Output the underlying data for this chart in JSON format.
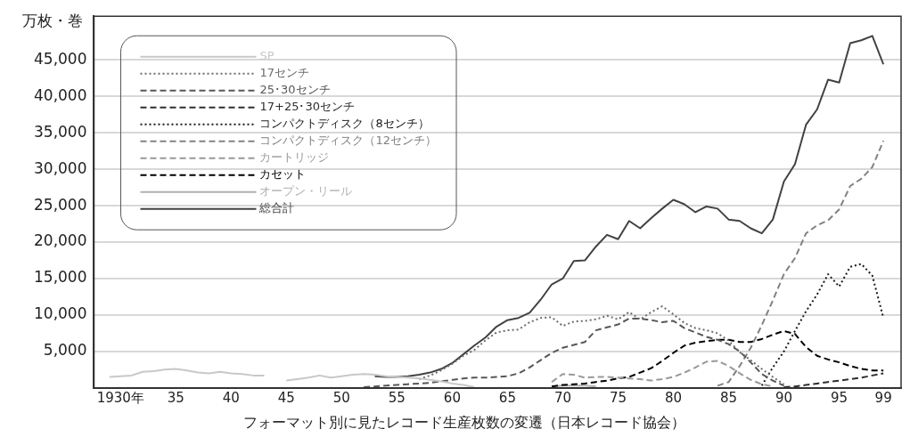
{
  "chart_data": {
    "type": "line",
    "title": "フォーマット別に見たレコード生産枚数の変遷（日本レコード協会）",
    "ylabel": "万枚・巻",
    "xlim": [
      1927.6,
      2000.6
    ],
    "xticks": [
      {
        "value": 1930,
        "label": "1930年"
      },
      {
        "value": 1935,
        "label": "35"
      },
      {
        "value": 1940,
        "label": "40"
      },
      {
        "value": 1945,
        "label": "45"
      },
      {
        "value": 1950,
        "label": "50"
      },
      {
        "value": 1955,
        "label": "55"
      },
      {
        "value": 1960,
        "label": "60"
      },
      {
        "value": 1965,
        "label": "65"
      },
      {
        "value": 1970,
        "label": "70"
      },
      {
        "value": 1975,
        "label": "75"
      },
      {
        "value": 1980,
        "label": "80"
      },
      {
        "value": 1985,
        "label": "85"
      },
      {
        "value": 1990,
        "label": "90"
      },
      {
        "value": 1995,
        "label": "95"
      },
      {
        "value": 1999,
        "label": "99"
      }
    ],
    "ylim": [
      0,
      51000
    ],
    "yticks": [
      {
        "value": 5000,
        "label": "5,000"
      },
      {
        "value": 10000,
        "label": "10,000"
      },
      {
        "value": 15000,
        "label": "15,000"
      },
      {
        "value": 20000,
        "label": "20,000"
      },
      {
        "value": 25000,
        "label": "25,000"
      },
      {
        "value": 30000,
        "label": "30,000"
      },
      {
        "value": 35000,
        "label": "35,000"
      },
      {
        "value": 40000,
        "label": "40,000"
      },
      {
        "value": 45000,
        "label": "45,000"
      }
    ],
    "grid": "y",
    "legend": "top left",
    "series": [
      {
        "name": "SP",
        "color": "#c8c8c8",
        "line_style": "solid",
        "x": [
          1929,
          1930,
          1931,
          1932,
          1933,
          1934,
          1935,
          1936,
          1937,
          1938,
          1939,
          1940,
          1941,
          1942,
          1943,
          1944,
          1945,
          1946,
          1947,
          1948,
          1949,
          1950,
          1951,
          1952,
          1953,
          1954,
          1955,
          1956,
          1957,
          1958,
          1959,
          1960,
          1961,
          1962
        ],
        "values": [
          1500,
          1600,
          1700,
          2200,
          2300,
          2500,
          2600,
          2400,
          2100,
          2000,
          2200,
          2000,
          1900,
          1700,
          1700,
          null,
          1000,
          1200,
          1400,
          1700,
          1400,
          1600,
          1800,
          1900,
          1800,
          1600,
          1500,
          1400,
          1300,
          1100,
          900,
          600,
          400,
          100
        ]
      },
      {
        "name": "17センチ",
        "color": "#6c6c6c",
        "line_style": "dotted",
        "x": [
          1957,
          1958,
          1959,
          1960,
          1961,
          1962,
          1963,
          1964,
          1965,
          1966,
          1967,
          1968,
          1969,
          1970,
          1971,
          1972,
          1973,
          1974,
          1975,
          1976,
          1977,
          1978,
          1979,
          1980,
          1981,
          1982,
          1983,
          1984,
          1985,
          1986,
          1987,
          1988,
          1989,
          1990
        ],
        "values": [
          1200,
          1700,
          2400,
          3300,
          4400,
          5200,
          6500,
          7600,
          7900,
          8000,
          9000,
          9600,
          9700,
          8500,
          9100,
          9200,
          9400,
          9900,
          9400,
          10400,
          9400,
          10400,
          11200,
          10100,
          8900,
          8200,
          7900,
          7500,
          6500,
          4900,
          3800,
          2600,
          1500,
          500
        ]
      },
      {
        "name": "25･30センチ",
        "color": "#575757",
        "line_style": "dashed",
        "x": [
          1952,
          1953,
          1954,
          1955,
          1956,
          1957,
          1958,
          1959,
          1960,
          1961,
          1962,
          1963,
          1964,
          1965,
          1966,
          1967,
          1968,
          1969,
          1970,
          1971,
          1972,
          1973,
          1974,
          1975,
          1976,
          1977,
          1978,
          1979,
          1980,
          1981,
          1982,
          1983,
          1984,
          1985,
          1986,
          1987,
          1988,
          1989,
          1990
        ],
        "values": [
          100,
          200,
          300,
          400,
          500,
          600,
          700,
          900,
          1100,
          1300,
          1400,
          1400,
          1500,
          1600,
          2000,
          2800,
          3800,
          4800,
          5500,
          5900,
          6300,
          7900,
          8300,
          8700,
          9500,
          9500,
          9300,
          9000,
          9200,
          8200,
          7600,
          7000,
          6600,
          6000,
          5000,
          3500,
          1900,
          1000,
          300
        ]
      },
      {
        "name": "17+25･30センチ",
        "color": "#2e2e2e",
        "line_style": "dashed",
        "x": [
          1990,
          1991,
          1992,
          1993,
          1994,
          1995,
          1996,
          1997,
          1998,
          1999
        ],
        "values": [
          100,
          200,
          400,
          600,
          800,
          1000,
          1200,
          1400,
          1700,
          2000
        ]
      },
      {
        "name": "コンパクトディスク（8センチ）",
        "color": "#1a1a1a",
        "line_style": "dotted",
        "x": [
          1988,
          1989,
          1990,
          1991,
          1992,
          1993,
          1994,
          1995,
          1996,
          1997,
          1998,
          1999
        ],
        "values": [
          300,
          2800,
          5000,
          7800,
          10500,
          12800,
          15600,
          13900,
          16600,
          17000,
          15400,
          9600
        ]
      },
      {
        "name": "コンパクトディスク（12センチ）",
        "color": "#828282",
        "line_style": "dashed",
        "x": [
          1984,
          1985,
          1986,
          1987,
          1988,
          1989,
          1990,
          1991,
          1992,
          1993,
          1994,
          1995,
          1996,
          1997,
          1998,
          1999
        ],
        "values": [
          300,
          800,
          3000,
          5500,
          8600,
          12000,
          15600,
          17800,
          21200,
          22300,
          23000,
          24500,
          27700,
          28700,
          30300,
          33900
        ]
      },
      {
        "name": "カートリッジ",
        "color": "#999999",
        "line_style": "dashed",
        "x": [
          1969,
          1970,
          1971,
          1972,
          1973,
          1974,
          1975,
          1976,
          1977,
          1978,
          1979,
          1980,
          1981,
          1982,
          1983,
          1984,
          1985,
          1986,
          1987,
          1988,
          1989
        ],
        "values": [
          800,
          1900,
          1800,
          1400,
          1500,
          1500,
          1400,
          1300,
          1200,
          1000,
          1200,
          1500,
          2100,
          2800,
          3600,
          3700,
          3000,
          2000,
          1100,
          500,
          200
        ]
      },
      {
        "name": "カセット",
        "color": "#000000",
        "line_style": "dashed",
        "x": [
          1969,
          1970,
          1971,
          1972,
          1973,
          1974,
          1975,
          1976,
          1977,
          1978,
          1979,
          1980,
          1981,
          1982,
          1983,
          1984,
          1985,
          1986,
          1987,
          1988,
          1989,
          1990,
          1991,
          1992,
          1993,
          1994,
          1995,
          1996,
          1997,
          1998,
          1999
        ],
        "values": [
          200,
          400,
          500,
          600,
          800,
          1000,
          1300,
          1500,
          2100,
          2700,
          3700,
          4800,
          5800,
          6200,
          6400,
          6600,
          6600,
          6300,
          6300,
          6700,
          7300,
          7800,
          7400,
          5600,
          4400,
          3900,
          3500,
          3000,
          2600,
          2400,
          2400
        ]
      },
      {
        "name": "オープン・リール",
        "color": "#b0b0b0",
        "line_style": "solid",
        "x": [
          1969,
          1970,
          1971,
          1972,
          1973
        ],
        "values": [
          200,
          300,
          300,
          300,
          200
        ]
      },
      {
        "name": "総合計",
        "color": "#424242",
        "line_style": "solid",
        "x": [
          1953,
          1954,
          1955,
          1956,
          1957,
          1958,
          1959,
          1960,
          1961,
          1962,
          1963,
          1964,
          1965,
          1966,
          1967,
          1968,
          1969,
          1970,
          1971,
          1972,
          1973,
          1974,
          1975,
          1976,
          1977,
          1978,
          1979,
          1980,
          1981,
          1982,
          1983,
          1984,
          1985,
          1986,
          1987,
          1988,
          1989,
          1990,
          1991,
          1992,
          1993,
          1994,
          1995,
          1996,
          1997,
          1998,
          1999
        ],
        "values": [
          1600,
          1500,
          1500,
          1600,
          1800,
          2100,
          2600,
          3400,
          4600,
          5800,
          6900,
          8400,
          9300,
          9600,
          10300,
          12100,
          14200,
          15000,
          17400,
          17500,
          19400,
          21000,
          20400,
          22900,
          21900,
          23300,
          24600,
          25800,
          25200,
          24100,
          24900,
          24600,
          23100,
          22900,
          21900,
          21200,
          23100,
          28300,
          30700,
          36100,
          38200,
          42300,
          41900,
          47300,
          47700,
          48300,
          44400
        ]
      }
    ]
  }
}
